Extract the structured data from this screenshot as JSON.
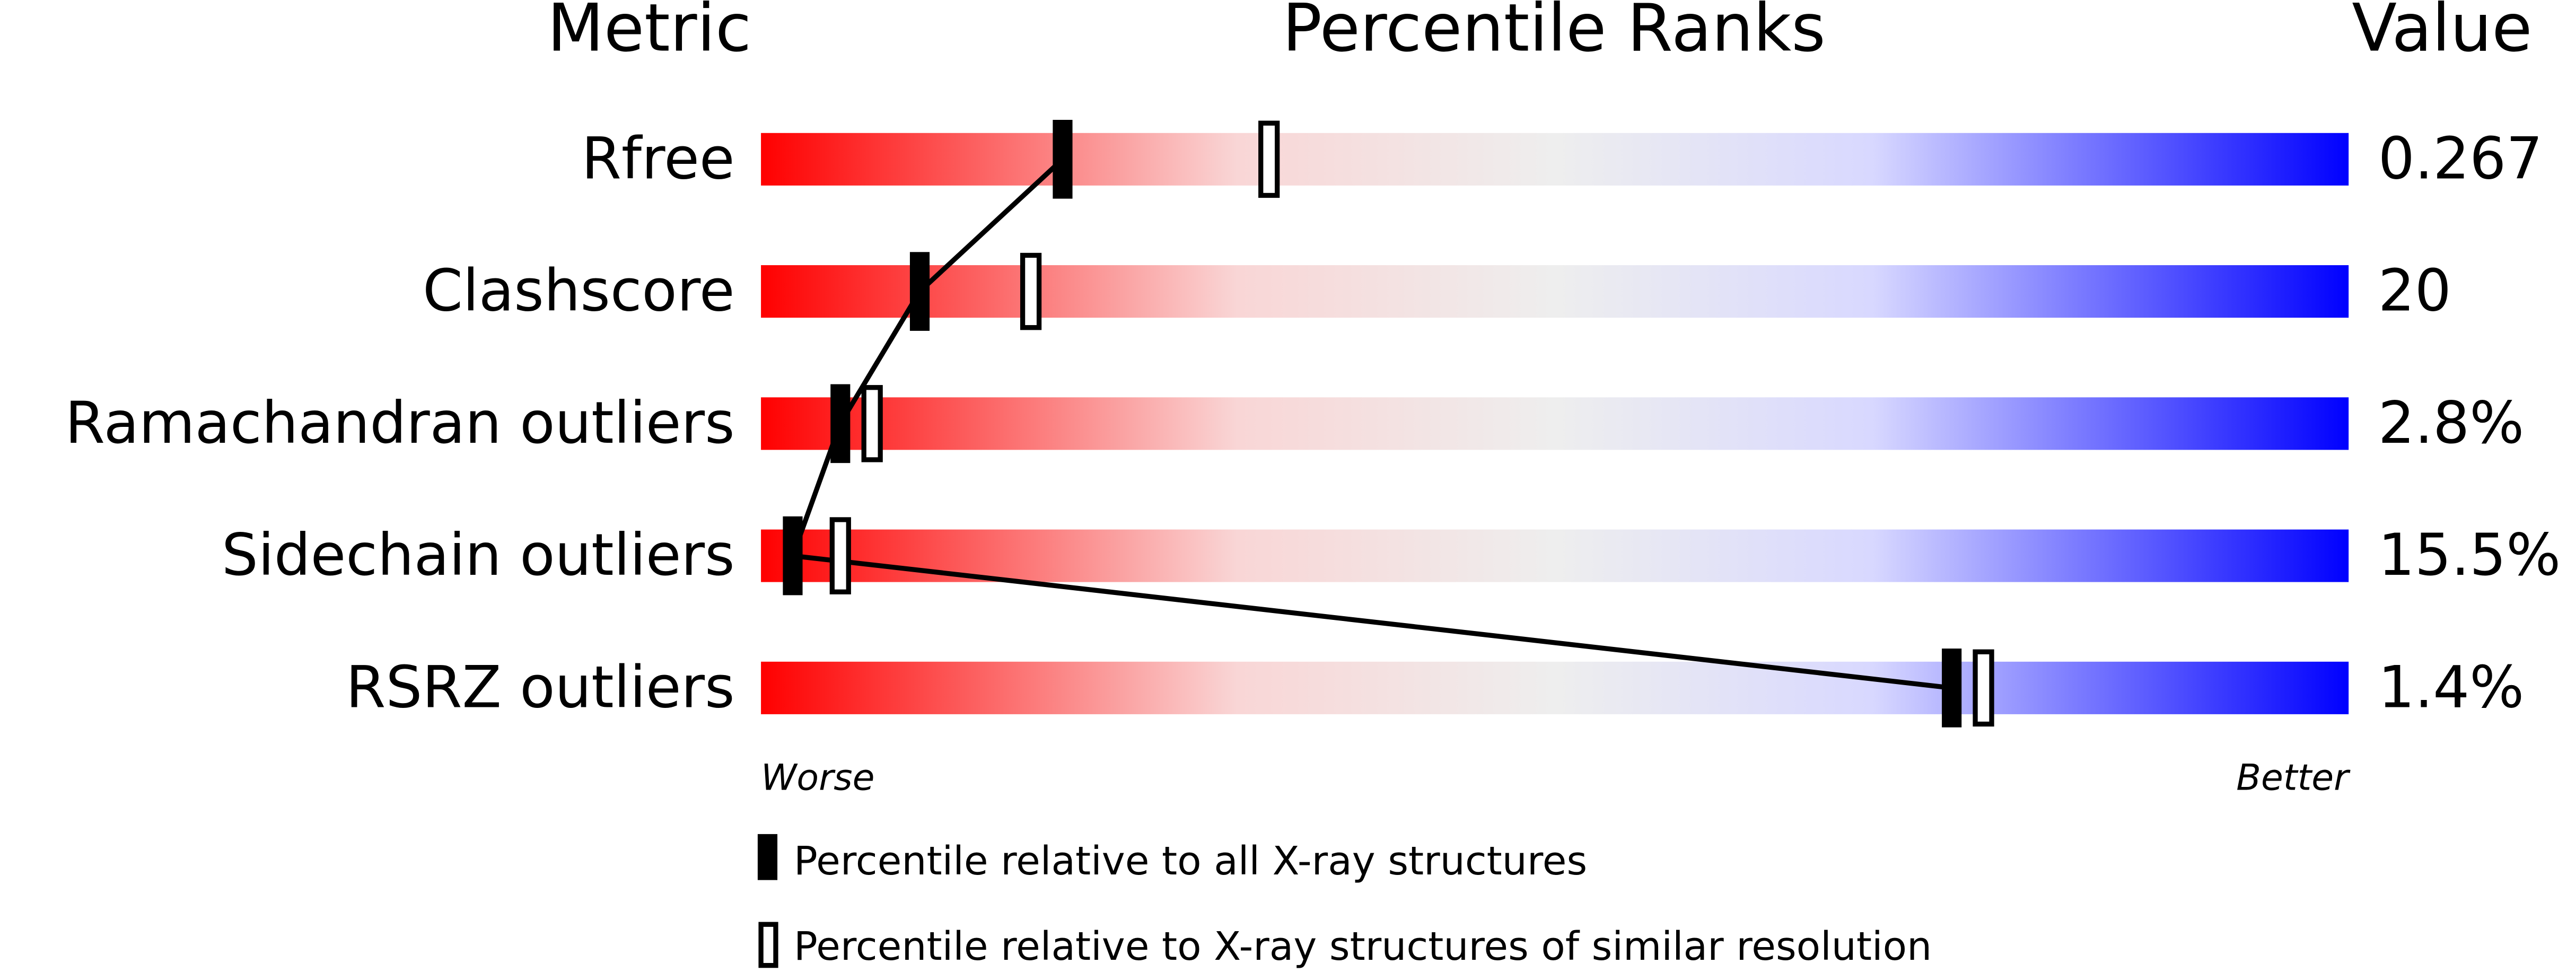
{
  "chart_data": {
    "type": "percentile",
    "headers": {
      "metric": "Metric",
      "percentile": "Percentile Ranks",
      "value": "Value"
    },
    "categories": [
      "Rfree",
      "Clashscore",
      "Ramachandran outliers",
      "Sidechain outliers",
      "RSRZ outliers"
    ],
    "values": [
      0.267,
      20,
      2.8,
      15.5,
      1.4
    ],
    "value_labels": [
      "0.267",
      "20",
      "2.8%",
      "15.5%",
      "1.4%"
    ],
    "xlim": [
      0,
      100
    ],
    "axis_labels": {
      "low": "Worse",
      "high": "Better"
    },
    "series": [
      {
        "name": "Percentile relative to all X-ray structures",
        "color": "#000000",
        "values": [
          19,
          10,
          5,
          2,
          75
        ]
      },
      {
        "name": "Percentile relative to X-ray structures of similar resolution",
        "color": "#000000",
        "values": [
          32,
          17,
          7,
          5,
          77
        ]
      }
    ]
  }
}
